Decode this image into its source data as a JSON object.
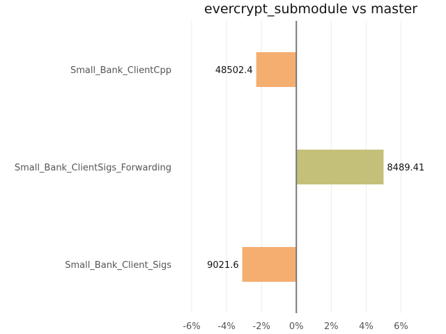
{
  "chart_data": {
    "type": "bar",
    "orientation": "horizontal",
    "title": "evercrypt_submodule vs master",
    "xlabel": "",
    "ylabel": "",
    "xlim": [
      -7,
      7.5
    ],
    "xticks": [
      -6,
      -4,
      -2,
      0,
      2,
      4,
      6
    ],
    "xtick_labels": [
      "-6%",
      "-4%",
      "-2%",
      "0%",
      "2%",
      "4%",
      "6%"
    ],
    "grid": true,
    "zero_line": true,
    "categories": [
      "Small_Bank_ClientCpp",
      "Small_Bank_ClientSigs_Forwarding",
      "Small_Bank_Client_Sigs"
    ],
    "values": [
      -2.3,
      5.0,
      -3.1
    ],
    "value_labels": [
      "48502.4",
      "8489.41",
      "9021.6"
    ],
    "colors": [
      "#f4ae70",
      "#c4c07a",
      "#f4ae70"
    ]
  }
}
